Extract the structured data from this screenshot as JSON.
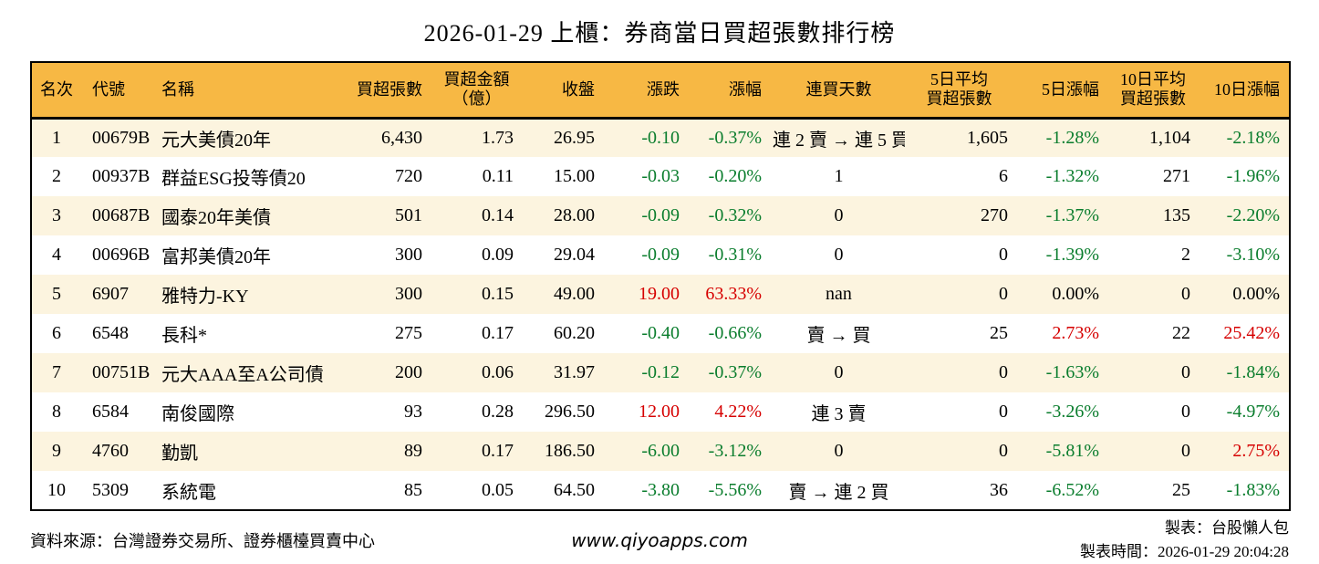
{
  "colors": {
    "header_bg": "#F7B844",
    "row_alt_bg": "#FCF4DF",
    "up": "#D60000",
    "down": "#0A7D2D"
  },
  "chart_data": {
    "type": "table",
    "title": "2026-01-29 上櫃：券商當日買超張數排行榜",
    "columns": [
      {
        "key": "rank",
        "label": "名次"
      },
      {
        "key": "code",
        "label": "代號"
      },
      {
        "key": "name",
        "label": "名稱"
      },
      {
        "key": "volume",
        "label": "買超張數"
      },
      {
        "key": "amount",
        "label": "買超金額",
        "label2": "（億）"
      },
      {
        "key": "close",
        "label": "收盤"
      },
      {
        "key": "change",
        "label": "漲跌"
      },
      {
        "key": "change_pct",
        "label": "漲幅"
      },
      {
        "key": "streak",
        "label": "連買天數"
      },
      {
        "key": "avg5",
        "label": "5日平均",
        "label2": "買超張數"
      },
      {
        "key": "pct5",
        "label": "5日漲幅"
      },
      {
        "key": "avg10",
        "label": "10日平均",
        "label2": "買超張數"
      },
      {
        "key": "pct10",
        "label": "10日漲幅"
      }
    ],
    "rows": [
      {
        "rank": "1",
        "code": "00679B",
        "name": "元大美債20年",
        "volume": "6,430",
        "amount": "1.73",
        "close": "26.95",
        "change": {
          "text": "-0.10",
          "tone": "down"
        },
        "change_pct": {
          "text": "-0.37%",
          "tone": "down"
        },
        "streak": "連 2 賣 → 連 5 買",
        "avg5": "1,605",
        "pct5": {
          "text": "-1.28%",
          "tone": "down"
        },
        "avg10": "1,104",
        "pct10": {
          "text": "-2.18%",
          "tone": "down"
        }
      },
      {
        "rank": "2",
        "code": "00937B",
        "name": "群益ESG投等債20",
        "volume": "720",
        "amount": "0.11",
        "close": "15.00",
        "change": {
          "text": "-0.03",
          "tone": "down"
        },
        "change_pct": {
          "text": "-0.20%",
          "tone": "down"
        },
        "streak": "1",
        "avg5": "6",
        "pct5": {
          "text": "-1.32%",
          "tone": "down"
        },
        "avg10": "271",
        "pct10": {
          "text": "-1.96%",
          "tone": "down"
        }
      },
      {
        "rank": "3",
        "code": "00687B",
        "name": "國泰20年美債",
        "volume": "501",
        "amount": "0.14",
        "close": "28.00",
        "change": {
          "text": "-0.09",
          "tone": "down"
        },
        "change_pct": {
          "text": "-0.32%",
          "tone": "down"
        },
        "streak": "0",
        "avg5": "270",
        "pct5": {
          "text": "-1.37%",
          "tone": "down"
        },
        "avg10": "135",
        "pct10": {
          "text": "-2.20%",
          "tone": "down"
        }
      },
      {
        "rank": "4",
        "code": "00696B",
        "name": "富邦美債20年",
        "volume": "300",
        "amount": "0.09",
        "close": "29.04",
        "change": {
          "text": "-0.09",
          "tone": "down"
        },
        "change_pct": {
          "text": "-0.31%",
          "tone": "down"
        },
        "streak": "0",
        "avg5": "0",
        "pct5": {
          "text": "-1.39%",
          "tone": "down"
        },
        "avg10": "2",
        "pct10": {
          "text": "-3.10%",
          "tone": "down"
        }
      },
      {
        "rank": "5",
        "code": "6907",
        "name": "雅特力-KY",
        "volume": "300",
        "amount": "0.15",
        "close": "49.00",
        "change": {
          "text": "19.00",
          "tone": "up"
        },
        "change_pct": {
          "text": "63.33%",
          "tone": "up"
        },
        "streak": "nan",
        "avg5": "0",
        "pct5": {
          "text": "0.00%",
          "tone": "flat"
        },
        "avg10": "0",
        "pct10": {
          "text": "0.00%",
          "tone": "flat"
        }
      },
      {
        "rank": "6",
        "code": "6548",
        "name": "長科*",
        "volume": "275",
        "amount": "0.17",
        "close": "60.20",
        "change": {
          "text": "-0.40",
          "tone": "down"
        },
        "change_pct": {
          "text": "-0.66%",
          "tone": "down"
        },
        "streak": "賣 → 買",
        "avg5": "25",
        "pct5": {
          "text": "2.73%",
          "tone": "up"
        },
        "avg10": "22",
        "pct10": {
          "text": "25.42%",
          "tone": "up"
        }
      },
      {
        "rank": "7",
        "code": "00751B",
        "name": "元大AAA至A公司債",
        "volume": "200",
        "amount": "0.06",
        "close": "31.97",
        "change": {
          "text": "-0.12",
          "tone": "down"
        },
        "change_pct": {
          "text": "-0.37%",
          "tone": "down"
        },
        "streak": "0",
        "avg5": "0",
        "pct5": {
          "text": "-1.63%",
          "tone": "down"
        },
        "avg10": "0",
        "pct10": {
          "text": "-1.84%",
          "tone": "down"
        }
      },
      {
        "rank": "8",
        "code": "6584",
        "name": "南俊國際",
        "volume": "93",
        "amount": "0.28",
        "close": "296.50",
        "change": {
          "text": "12.00",
          "tone": "up"
        },
        "change_pct": {
          "text": "4.22%",
          "tone": "up"
        },
        "streak": "連 3 賣",
        "avg5": "0",
        "pct5": {
          "text": "-3.26%",
          "tone": "down"
        },
        "avg10": "0",
        "pct10": {
          "text": "-4.97%",
          "tone": "down"
        }
      },
      {
        "rank": "9",
        "code": "4760",
        "name": "勤凱",
        "volume": "89",
        "amount": "0.17",
        "close": "186.50",
        "change": {
          "text": "-6.00",
          "tone": "down"
        },
        "change_pct": {
          "text": "-3.12%",
          "tone": "down"
        },
        "streak": "0",
        "avg5": "0",
        "pct5": {
          "text": "-5.81%",
          "tone": "down"
        },
        "avg10": "0",
        "pct10": {
          "text": "2.75%",
          "tone": "up"
        }
      },
      {
        "rank": "10",
        "code": "5309",
        "name": "系統電",
        "volume": "85",
        "amount": "0.05",
        "close": "64.50",
        "change": {
          "text": "-3.80",
          "tone": "down"
        },
        "change_pct": {
          "text": "-5.56%",
          "tone": "down"
        },
        "streak": "賣 → 連 2 買",
        "avg5": "36",
        "pct5": {
          "text": "-6.52%",
          "tone": "down"
        },
        "avg10": "25",
        "pct10": {
          "text": "-1.83%",
          "tone": "down"
        }
      }
    ]
  },
  "footer": {
    "source": "資料來源：台灣證券交易所、證券櫃檯買賣中心",
    "website": "www.qiyoapps.com",
    "made_by": "製表：台股懶人包",
    "made_at": "製表時間：2026-01-29 20:04:28"
  }
}
